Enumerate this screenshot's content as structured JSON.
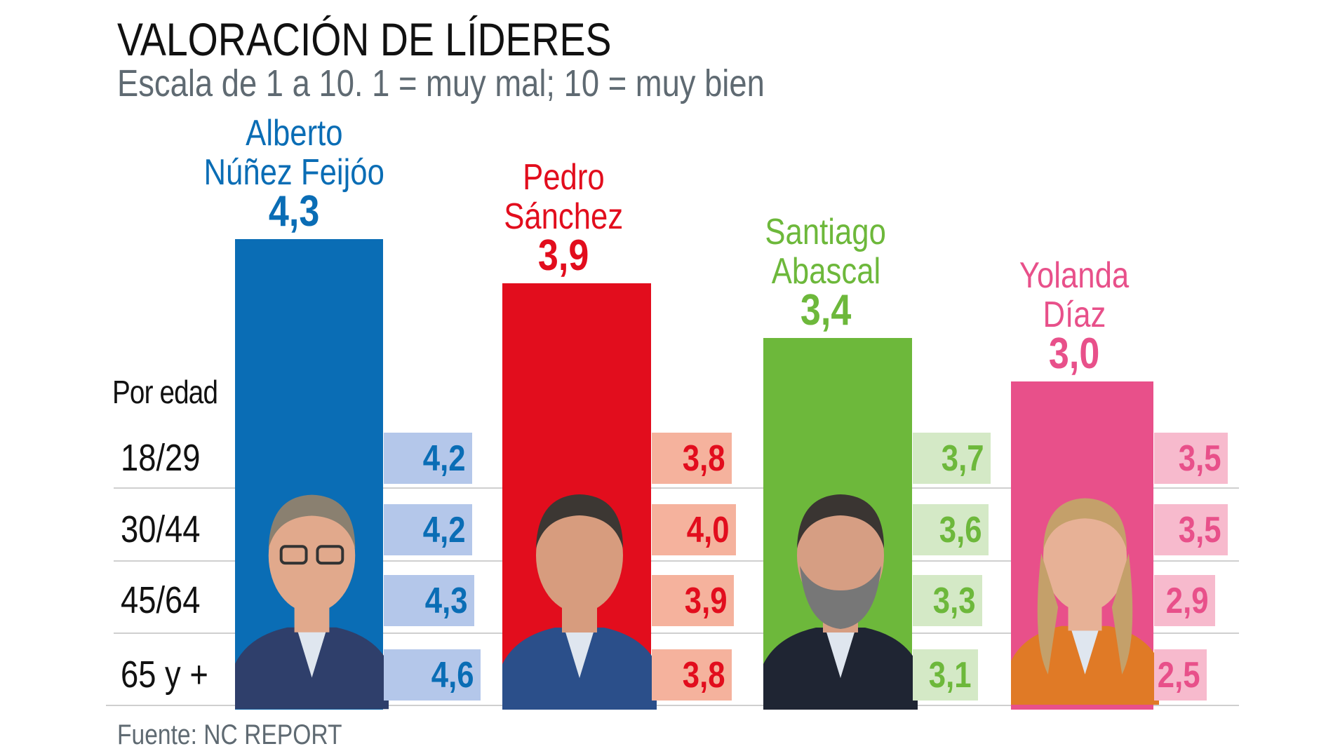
{
  "chart_data": {
    "type": "bar",
    "title": "VALORACIÓN DE LÍDERES",
    "subtitle": "Escala de 1 a 10. 1 = muy mal; 10 = muy bien",
    "source": "Fuente: NC REPORT",
    "group_label": "Por edad",
    "age_groups": [
      "18/29",
      "30/44",
      "45/64",
      "65 y +"
    ],
    "categories": [
      "Alberto Núñez Feijóo",
      "Pedro Sánchez",
      "Santiago Abascal",
      "Yolanda Díaz"
    ],
    "leaders": [
      {
        "name_lines": [
          "Alberto",
          "Núñez Feijóo"
        ],
        "value": 4.3,
        "value_label": "4,3",
        "color": "#0a6db5",
        "light_color": "#b4c7ea",
        "by_age": [
          4.2,
          4.2,
          4.3,
          4.6
        ],
        "by_age_labels": [
          "4,2",
          "4,2",
          "4,3",
          "4,6"
        ],
        "photo": "portrait-feijoo"
      },
      {
        "name_lines": [
          "Pedro",
          "Sánchez"
        ],
        "value": 3.9,
        "value_label": "3,9",
        "color": "#e20d1d",
        "light_color": "#f5b29d",
        "by_age": [
          3.8,
          4.0,
          3.9,
          3.8
        ],
        "by_age_labels": [
          "3,8",
          "4,0",
          "3,9",
          "3,8"
        ],
        "photo": "portrait-sanchez"
      },
      {
        "name_lines": [
          "Santiago",
          "Abascal"
        ],
        "value": 3.4,
        "value_label": "3,4",
        "color": "#6db83b",
        "light_color": "#d4e9c6",
        "by_age": [
          3.7,
          3.6,
          3.3,
          3.1
        ],
        "by_age_labels": [
          "3,7",
          "3,6",
          "3,3",
          "3,1"
        ],
        "photo": "portrait-abascal"
      },
      {
        "name_lines": [
          "Yolanda",
          "Díaz"
        ],
        "value": 3.0,
        "value_label": "3,0",
        "color": "#e8508a",
        "light_color": "#f7bacd",
        "by_age": [
          3.5,
          3.5,
          2.9,
          2.5
        ],
        "by_age_labels": [
          "3,5",
          "3,5",
          "2,9",
          "2,5"
        ],
        "photo": "portrait-diaz"
      }
    ],
    "grid": false,
    "legend": "none"
  }
}
